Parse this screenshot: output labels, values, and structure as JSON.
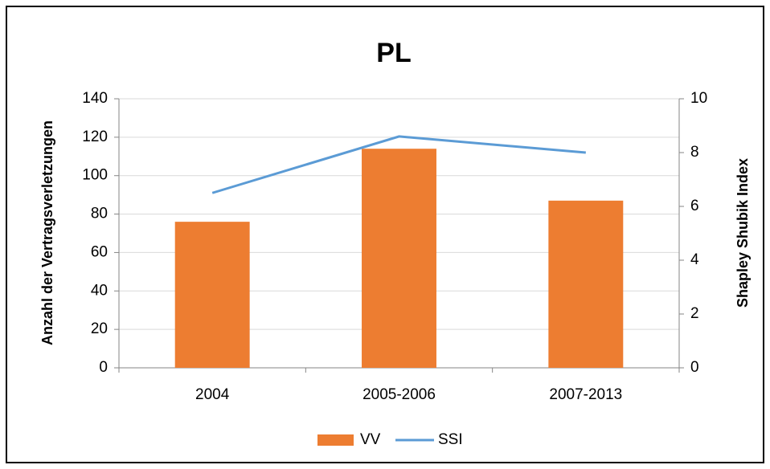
{
  "chart_data": {
    "type": "bar",
    "title": "PL",
    "categories": [
      "2004",
      "2005-2006",
      "2007-2013"
    ],
    "series": [
      {
        "name": "VV",
        "type": "bar",
        "color": "#ed7d31",
        "values": [
          76,
          114,
          87
        ]
      },
      {
        "name": "SSI",
        "type": "line",
        "axis": "y2",
        "color": "#5b9bd5",
        "values": [
          6.5,
          8.6,
          8.0
        ]
      }
    ],
    "ylabel": "Anzahl der Vertragsverletzungen",
    "y2label": "Shapley Shubik Index",
    "ylim": [
      0,
      140
    ],
    "yticks": [
      0,
      20,
      40,
      60,
      80,
      100,
      120,
      140
    ],
    "y2lim": [
      0,
      10
    ],
    "y2ticks": [
      0,
      2,
      4,
      6,
      8,
      10
    ],
    "grid": true,
    "legend": "bottom"
  }
}
